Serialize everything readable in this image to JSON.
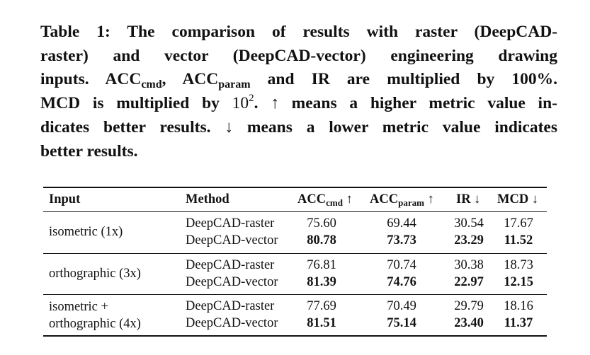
{
  "caption": {
    "line1": "Table 1: The comparison of results with raster (DeepCAD-",
    "line2": "raster) and vector (DeepCAD-vector) engineering drawing",
    "line3_a": "inputs. ACC",
    "line3_sub1": "cmd",
    "line3_b": ", ACC",
    "line3_sub2": "param",
    "line3_c": " and IR are multiplied by 100%.",
    "line4_a": "MCD is multiplied by ",
    "line4_base": "10",
    "line4_exp": "2",
    "line4_b": ". ↑ means a higher metric value in-",
    "line5": "dicates better results. ↓ means a lower metric value indicates",
    "line6": "better results."
  },
  "table": {
    "headers": {
      "input": "Input",
      "method": "Method",
      "acc_cmd": "ACC",
      "acc_cmd_sub": "cmd",
      "acc_cmd_arrow": " ↑",
      "acc_param": "ACC",
      "acc_param_sub": "param",
      "acc_param_arrow": " ↑",
      "ir": "IR ↓",
      "mcd": "MCD ↓"
    },
    "groups": [
      {
        "input_line1": "isometric (1x)",
        "input_line2": "",
        "rows": [
          {
            "method": "DeepCAD-raster",
            "acc_cmd": "75.60",
            "acc_param": "69.44",
            "ir": "30.54",
            "mcd": "17.67"
          },
          {
            "method": "DeepCAD-vector",
            "acc_cmd": "80.78",
            "acc_param": "73.73",
            "ir": "23.29",
            "mcd": "11.52"
          }
        ]
      },
      {
        "input_line1": "orthographic (3x)",
        "input_line2": "",
        "rows": [
          {
            "method": "DeepCAD-raster",
            "acc_cmd": "76.81",
            "acc_param": "70.74",
            "ir": "30.38",
            "mcd": "18.73"
          },
          {
            "method": "DeepCAD-vector",
            "acc_cmd": "81.39",
            "acc_param": "74.76",
            "ir": "22.97",
            "mcd": "12.15"
          }
        ]
      },
      {
        "input_line1": "isometric +",
        "input_line2": "orthographic (4x)",
        "rows": [
          {
            "method": "DeepCAD-raster",
            "acc_cmd": "77.69",
            "acc_param": "70.49",
            "ir": "29.79",
            "mcd": "18.16"
          },
          {
            "method": "DeepCAD-vector",
            "acc_cmd": "81.51",
            "acc_param": "75.14",
            "ir": "23.40",
            "mcd": "11.37"
          }
        ]
      }
    ]
  }
}
